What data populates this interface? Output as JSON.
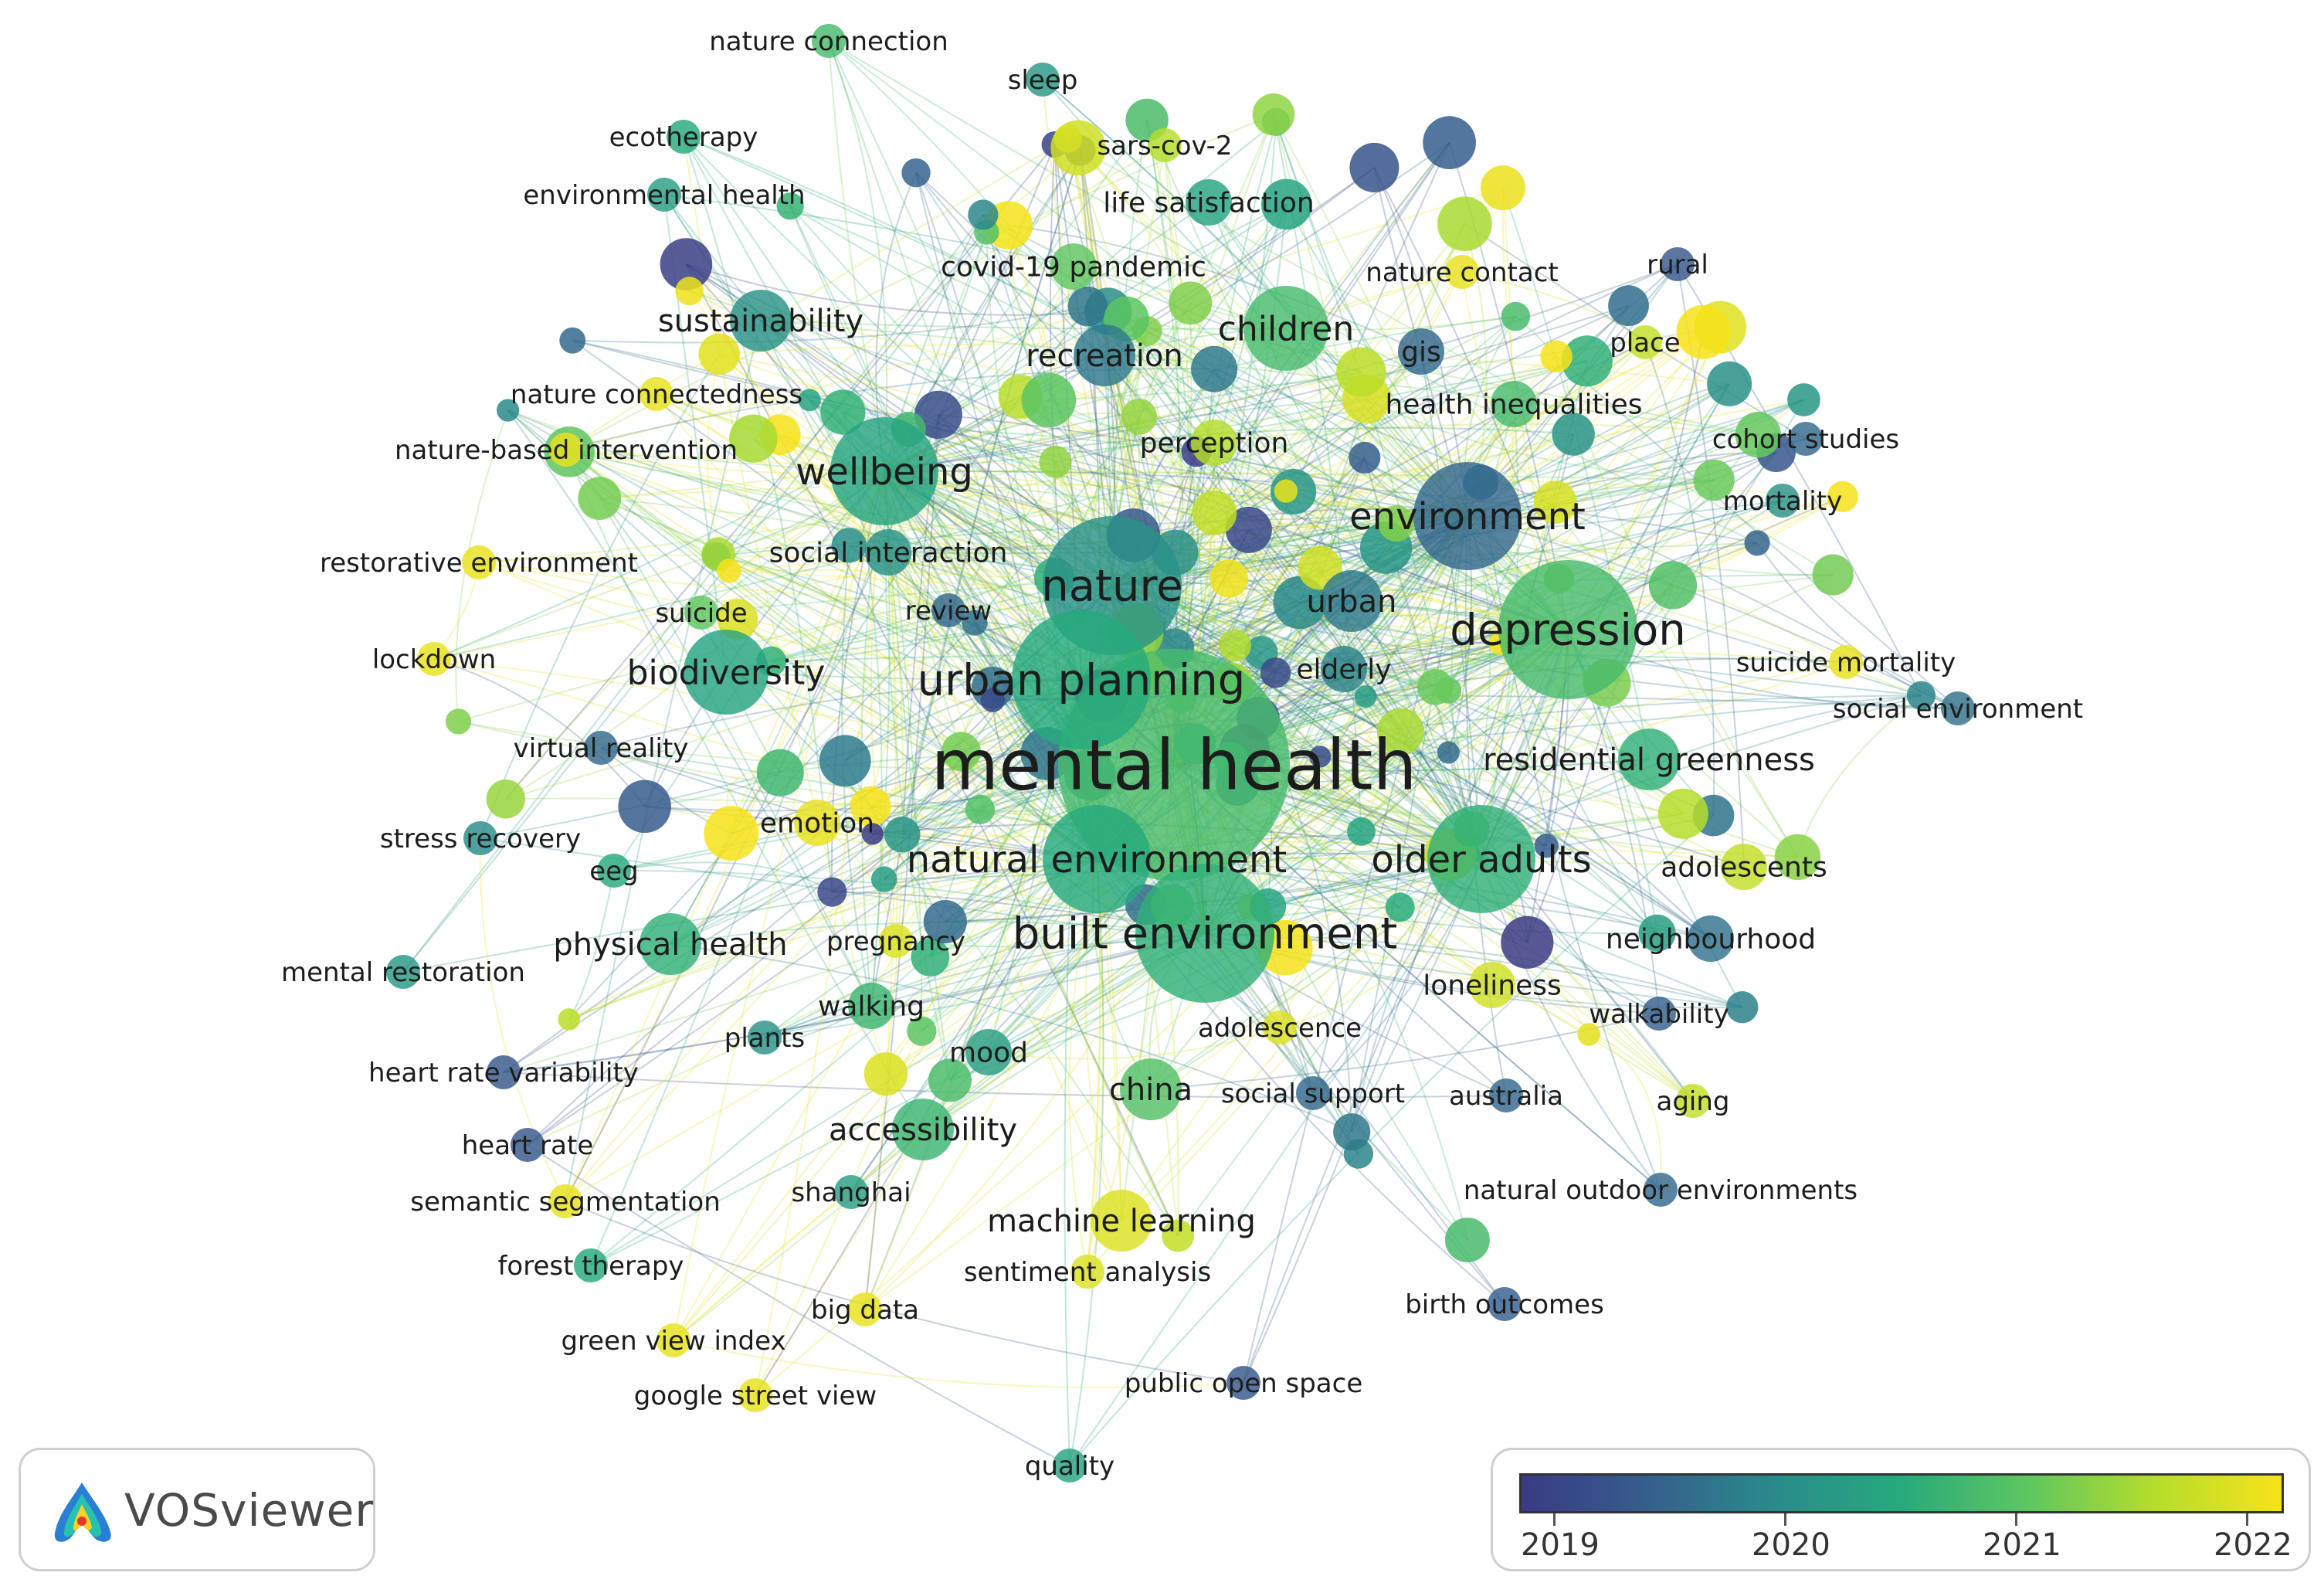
{
  "brand": {
    "name": "VOSviewer",
    "logo_icon": "vosviewer-logo-icon"
  },
  "legend": {
    "labels": [
      "2019",
      "2020",
      "2021",
      "2022"
    ],
    "range": [
      2019,
      2022
    ],
    "colors": [
      "#3b3a84",
      "#355f8d",
      "#2a8b8a",
      "#26aa7d",
      "#5fc660",
      "#b5dd2b",
      "#f6e31a"
    ]
  },
  "terms": [
    {
      "label": "mental health",
      "year": 2020.8,
      "weight": 10
    },
    {
      "label": "nature",
      "year": 2020.1,
      "weight": 6
    },
    {
      "label": "urban planning",
      "year": 2020.5,
      "weight": 6
    },
    {
      "label": "depression",
      "year": 2020.8,
      "weight": 6
    },
    {
      "label": "built environment",
      "year": 2020.6,
      "weight": 6
    },
    {
      "label": "natural environment",
      "year": 2020.5,
      "weight": 5
    },
    {
      "label": "older adults",
      "year": 2020.6,
      "weight": 5
    },
    {
      "label": "environment",
      "year": 2019.6,
      "weight": 5
    },
    {
      "label": "wellbeing",
      "year": 2020.4,
      "weight": 5
    },
    {
      "label": "biodiversity",
      "year": 2020.4,
      "weight": 4
    },
    {
      "label": "children",
      "year": 2020.8,
      "weight": 4
    },
    {
      "label": "sustainability",
      "year": 2020.1,
      "weight": 3
    },
    {
      "label": "recreation",
      "year": 2019.8,
      "weight": 3
    },
    {
      "label": "urban",
      "year": 2019.8,
      "weight": 3
    },
    {
      "label": "physical health",
      "year": 2020.6,
      "weight": 3
    },
    {
      "label": "china",
      "year": 2020.9,
      "weight": 3
    },
    {
      "label": "residential greenness",
      "year": 2020.6,
      "weight": 3
    },
    {
      "label": "accessibility",
      "year": 2020.7,
      "weight": 3
    },
    {
      "label": "machine learning",
      "year": 2021.8,
      "weight": 3
    },
    {
      "label": "neighbourhood",
      "year": 2019.7,
      "weight": 2
    },
    {
      "label": "gis",
      "year": 2019.6,
      "weight": 2
    },
    {
      "label": "covid-19 pandemic",
      "year": 2021.0,
      "weight": 2
    },
    {
      "label": "perception",
      "year": 2021.5,
      "weight": 2
    },
    {
      "label": "adolescents",
      "year": 2021.6,
      "weight": 2
    },
    {
      "label": "walking",
      "year": 2020.7,
      "weight": 2
    },
    {
      "label": "mood",
      "year": 2020.3,
      "weight": 2
    },
    {
      "label": "emotion",
      "year": 2021.9,
      "weight": 2
    },
    {
      "label": "elderly",
      "year": 2019.9,
      "weight": 2
    },
    {
      "label": "health inequalities",
      "year": 2020.8,
      "weight": 2
    },
    {
      "label": "life satisfaction",
      "year": 2020.4,
      "weight": 2
    },
    {
      "label": "social interaction",
      "year": 2020.1,
      "weight": 2
    },
    {
      "label": "loneliness",
      "year": 2021.7,
      "weight": 2
    },
    {
      "label": "walkability",
      "year": 2019.5,
      "weight": 1
    },
    {
      "label": "social support",
      "year": 2019.6,
      "weight": 1
    },
    {
      "label": "australia",
      "year": 2019.6,
      "weight": 1
    },
    {
      "label": "pregnancy",
      "year": 2021.8,
      "weight": 1
    },
    {
      "label": "nature connection",
      "year": 2020.8,
      "weight": 1
    },
    {
      "label": "sleep",
      "year": 2020.2,
      "weight": 1
    },
    {
      "label": "sars-cov-2",
      "year": 2021.5,
      "weight": 1
    },
    {
      "label": "ecotherapy",
      "year": 2020.5,
      "weight": 1
    },
    {
      "label": "environmental health",
      "year": 2020.3,
      "weight": 1
    },
    {
      "label": "nature contact",
      "year": 2021.9,
      "weight": 1
    },
    {
      "label": "rural",
      "year": 2019.4,
      "weight": 1
    },
    {
      "label": "place",
      "year": 2021.6,
      "weight": 1
    },
    {
      "label": "nature connectedness",
      "year": 2021.9,
      "weight": 1
    },
    {
      "label": "nature-based intervention",
      "year": 2021.9,
      "weight": 1
    },
    {
      "label": "cohort studies",
      "year": 2019.6,
      "weight": 1
    },
    {
      "label": "mortality",
      "year": 2020.1,
      "weight": 1
    },
    {
      "label": "restorative environment",
      "year": 2021.9,
      "weight": 1
    },
    {
      "label": "review",
      "year": 2019.6,
      "weight": 1
    },
    {
      "label": "suicide",
      "year": 2021.0,
      "weight": 1
    },
    {
      "label": "lockdown",
      "year": 2021.9,
      "weight": 1
    },
    {
      "label": "suicide mortality",
      "year": 2021.9,
      "weight": 1
    },
    {
      "label": "social environment",
      "year": 2019.7,
      "weight": 1
    },
    {
      "label": "virtual reality",
      "year": 2019.6,
      "weight": 1
    },
    {
      "label": "stress recovery",
      "year": 2020.0,
      "weight": 1
    },
    {
      "label": "eeg",
      "year": 2020.5,
      "weight": 1
    },
    {
      "label": "mental restoration",
      "year": 2020.2,
      "weight": 1
    },
    {
      "label": "plants",
      "year": 2020.1,
      "weight": 1
    },
    {
      "label": "heart rate variability",
      "year": 2019.4,
      "weight": 1
    },
    {
      "label": "adolescence",
      "year": 2021.8,
      "weight": 1
    },
    {
      "label": "aging",
      "year": 2021.6,
      "weight": 1
    },
    {
      "label": "heart rate",
      "year": 2019.4,
      "weight": 1
    },
    {
      "label": "semantic segmentation",
      "year": 2021.9,
      "weight": 1
    },
    {
      "label": "shanghai",
      "year": 2020.3,
      "weight": 1
    },
    {
      "label": "natural outdoor environments",
      "year": 2019.6,
      "weight": 1
    },
    {
      "label": "forest therapy",
      "year": 2020.5,
      "weight": 1
    },
    {
      "label": "sentiment analysis",
      "year": 2021.8,
      "weight": 1
    },
    {
      "label": "big data",
      "year": 2021.9,
      "weight": 1
    },
    {
      "label": "birth outcomes",
      "year": 2019.5,
      "weight": 1
    },
    {
      "label": "green view index",
      "year": 2021.9,
      "weight": 1
    },
    {
      "label": "google street view",
      "year": 2021.9,
      "weight": 1
    },
    {
      "label": "public open space",
      "year": 2019.4,
      "weight": 1
    },
    {
      "label": "quality",
      "year": 2020.4,
      "weight": 1
    }
  ]
}
